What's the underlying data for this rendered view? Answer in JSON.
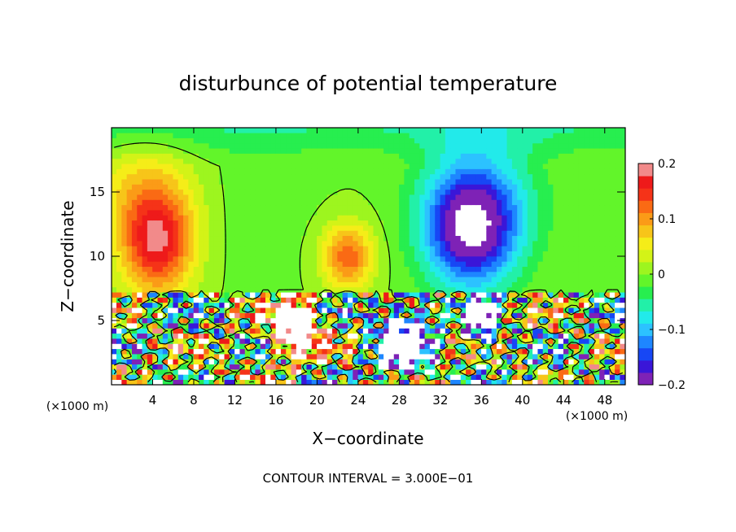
{
  "chart_data": {
    "type": "heatmap",
    "title": "disturbunce of potential temperature",
    "xlabel": "X−coordinate",
    "ylabel": "Z−coordinate",
    "x_unit_left": "(×1000 m)",
    "x_unit_right": "(×1000 m)",
    "xlim": [
      0,
      50
    ],
    "ylim": [
      0,
      20
    ],
    "x_ticks": [
      4,
      8,
      12,
      16,
      20,
      24,
      28,
      32,
      36,
      40,
      44,
      48
    ],
    "x_tick_labels": [
      "4",
      "8",
      "12",
      "16",
      "20",
      "24",
      "28",
      "32",
      "36",
      "40",
      "44",
      "48"
    ],
    "y_ticks": [
      5,
      10,
      15
    ],
    "y_tick_labels": [
      "5",
      "10",
      "15"
    ],
    "footer": "CONTOUR INTERVAL = 3.000E−01",
    "colorbar": {
      "range": [
        -0.2,
        0.2
      ],
      "tick_values": [
        0.2,
        0.1,
        0,
        -0.1,
        -0.2
      ],
      "tick_labels": [
        "0.2",
        "0.1",
        "0",
        "−0.1",
        "−0.2"
      ],
      "colors": [
        "#7e22b6",
        "#3a16d8",
        "#1747f5",
        "#1e86ff",
        "#2cc2ff",
        "#22eaea",
        "#22f0a8",
        "#27ee4f",
        "#62f52a",
        "#9df51f",
        "#d3f317",
        "#f5ed18",
        "#f7c519",
        "#fb9b17",
        "#fa6a14",
        "#f53318",
        "#ee1a1a",
        "#f28a8a"
      ]
    },
    "field_features": [
      {
        "x": 4.5,
        "z": 11,
        "sx": 3.5,
        "sz": 4,
        "amp": 0.17
      },
      {
        "x": 3,
        "z": 15,
        "sx": 5,
        "sz": 4,
        "amp": 0.06
      },
      {
        "x": 23,
        "z": 10,
        "sx": 2.5,
        "sz": 2.5,
        "amp": 0.13
      },
      {
        "x": 35,
        "z": 12,
        "sx": 4.5,
        "sz": 4.5,
        "amp": -0.2
      },
      {
        "x": 36,
        "z": 15,
        "sx": 6,
        "sz": 5,
        "amp": -0.06
      },
      {
        "x": 14,
        "z": 14,
        "sx": 6,
        "sz": 7,
        "amp": -0.01
      }
    ]
  }
}
